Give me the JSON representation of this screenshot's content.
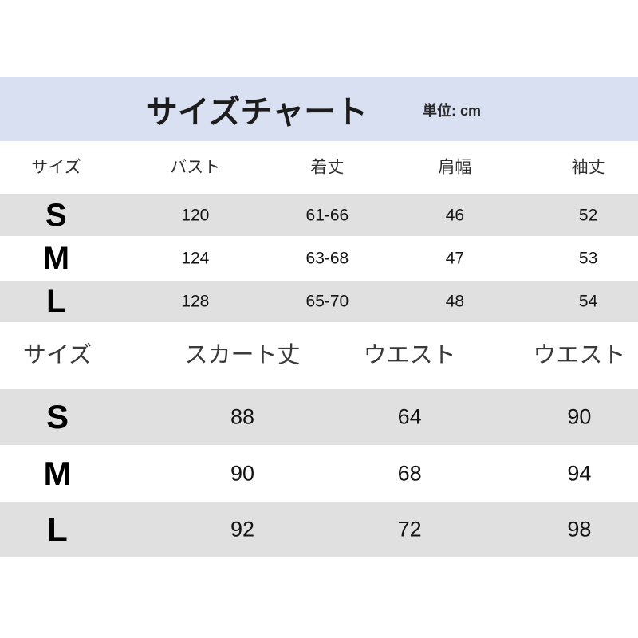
{
  "header": {
    "title": "サイズチャート",
    "unit_label": "単位: cm"
  },
  "colors": {
    "header_bg": "#d9e0f2",
    "alt_row_bg": "#e0e0e0",
    "text": "#1a1a1a"
  },
  "chart_data": [
    {
      "type": "table",
      "title": "サイズチャート",
      "unit_label": "単位: cm",
      "columns": [
        "サイズ",
        "バスト",
        "着丈",
        "肩幅",
        "袖丈"
      ],
      "rows": [
        [
          "S",
          "120",
          "61-66",
          "46",
          "52"
        ],
        [
          "M",
          "124",
          "63-68",
          "47",
          "53"
        ],
        [
          "L",
          "128",
          "65-70",
          "48",
          "54"
        ]
      ],
      "layout_hint": "alternating gray/white rows, all values centered"
    },
    {
      "type": "table",
      "columns": [
        "サイズ",
        "スカート丈",
        "ウエスト",
        "ウエスト"
      ],
      "rows": [
        [
          "S",
          "88",
          "64",
          "90"
        ],
        [
          "M",
          "90",
          "68",
          "94"
        ],
        [
          "L",
          "92",
          "72",
          "98"
        ]
      ],
      "layout_hint": "alternating gray/white rows, all values centered"
    }
  ]
}
